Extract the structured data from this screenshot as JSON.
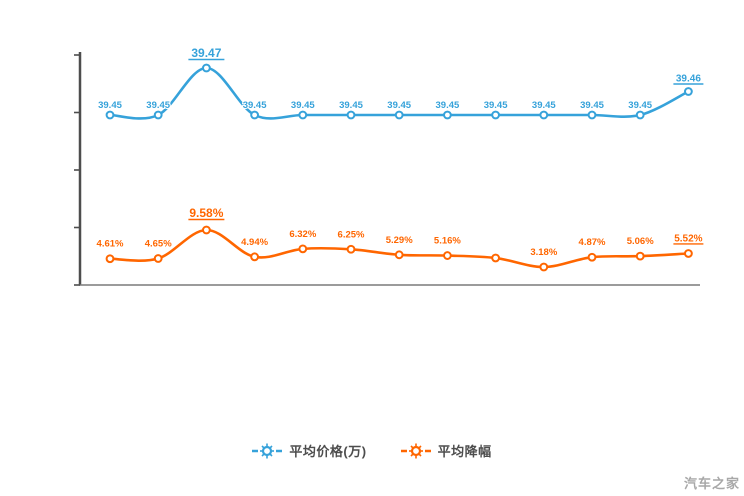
{
  "legend": {
    "items": [
      {
        "label": "平均价格(万)",
        "color": "#36a2da"
      },
      {
        "label": "平均降幅",
        "color": "#ff6600"
      }
    ]
  },
  "watermark": {
    "text": "汽车之家"
  },
  "chart_data": {
    "type": "line",
    "title": "",
    "xlabel": "",
    "ylabel": "",
    "x_tick_labels_visible": false,
    "y_tick_labels_visible": false,
    "grid": false,
    "legend_position": "bottom",
    "series": [
      {
        "name": "平均价格(万)",
        "color": "#36a2da",
        "values": [
          39.45,
          39.45,
          39.47,
          39.45,
          39.45,
          39.45,
          39.45,
          39.45,
          39.45,
          39.45,
          39.45,
          39.45,
          39.46
        ],
        "labels": [
          "39.45",
          "39.45",
          "39.47",
          "39.45",
          "39.45",
          "39.45",
          "39.45",
          "39.45",
          "39.45",
          "39.45",
          "39.45",
          "39.45",
          "39.46"
        ],
        "max_label_index": 2,
        "last_label_underlined": true
      },
      {
        "name": "平均降幅",
        "color": "#ff6600",
        "values": [
          4.61,
          4.65,
          9.58,
          4.94,
          6.32,
          6.25,
          5.29,
          5.16,
          4.74,
          3.18,
          4.87,
          5.06,
          5.52
        ],
        "labels": [
          "4.61%",
          "4.65%",
          "9.58%",
          "4.94%",
          "6.32%",
          "6.25%",
          "5.29%",
          "5.16%",
          "",
          "3.18%",
          "4.87%",
          "5.06%",
          "5.52%"
        ],
        "max_label_index": 2,
        "last_label_underlined": true
      }
    ]
  }
}
